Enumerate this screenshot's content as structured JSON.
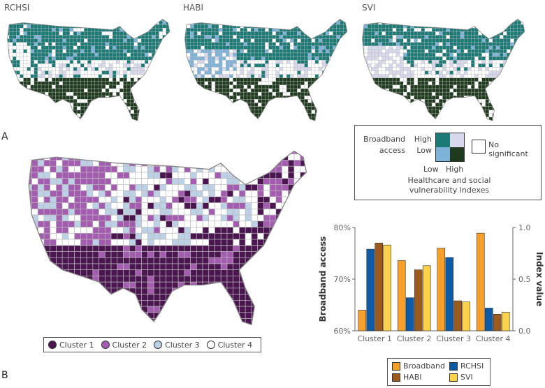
{
  "panel_a": {
    "label": "A",
    "maps": [
      {
        "title": "RCHSI",
        "scheme": "rchsi"
      },
      {
        "title": "HABI",
        "scheme": "habi"
      },
      {
        "title": "SVI",
        "scheme": "svi"
      }
    ],
    "legend": {
      "y_title_1": "Broadband",
      "y_title_2": "access",
      "y_high": "High",
      "y_low": "Low",
      "x_low": "Low",
      "x_high": "High",
      "x_title_1": "Healthcare and social",
      "x_title_2": "vulnerability indexes",
      "none": "No significant",
      "colors": {
        "high_low": "#1b7a76",
        "high_high": "#d8d8ec",
        "low_low": "#7fb2d8",
        "low_high": "#1f3a1f",
        "none": "#ffffff"
      }
    }
  },
  "panel_b": {
    "label": "B",
    "clusters": [
      {
        "label": "Cluster 1",
        "color": "#4b1550"
      },
      {
        "label": "Cluster 2",
        "color": "#a45cb0"
      },
      {
        "label": "Cluster 3",
        "color": "#bcd0e6"
      },
      {
        "label": "Cluster 4",
        "color": "#ffffff"
      }
    ]
  },
  "chart_data": {
    "type": "bar",
    "categories": [
      "Cluster 1",
      "Cluster 2",
      "Cluster 3",
      "Cluster 4"
    ],
    "ylabel": "Broadband access",
    "ylabel_right": "Index value",
    "ylim": [
      60,
      80
    ],
    "ylim_right": [
      0,
      1
    ],
    "yticks": [
      "60%",
      "70%",
      "80%"
    ],
    "yticks_right": [
      "0.0",
      "0.5",
      "1.0"
    ],
    "legend_position": "bottom",
    "series": [
      {
        "name": "Broadband",
        "axis": "left",
        "color": "#f5a02a",
        "values": [
          64.0,
          73.6,
          76.0,
          78.9
        ]
      },
      {
        "name": "RCHSI",
        "axis": "right",
        "color": "#0d5aa7",
        "values": [
          0.79,
          0.32,
          0.71,
          0.22
        ]
      },
      {
        "name": "HABI",
        "axis": "right",
        "color": "#9c5a1e",
        "values": [
          0.85,
          0.59,
          0.29,
          0.16
        ]
      },
      {
        "name": "SVI",
        "axis": "right",
        "color": "#fcd24a",
        "values": [
          0.83,
          0.63,
          0.28,
          0.18
        ]
      }
    ]
  }
}
